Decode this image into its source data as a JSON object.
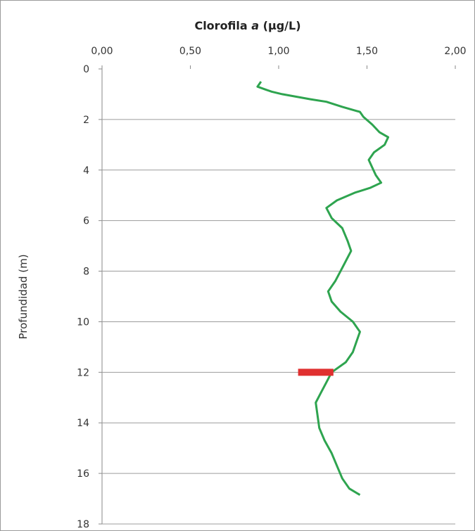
{
  "chart_data": {
    "type": "line",
    "title_main": "Clorofila ",
    "title_italic": "a",
    "title_unit": " (µg/L)",
    "xlabel": "Clorofila a (µg/L)",
    "ylabel": "Profundidad (m)",
    "xlim": [
      0,
      2
    ],
    "ylim": [
      0,
      18
    ],
    "y_inverted": true,
    "x_axis_position": "top",
    "grid": "horizontal",
    "x_tick_labels": [
      "0,00",
      "0,50",
      "1,00",
      "1,50",
      "2,00"
    ],
    "y_tick_labels": [
      "0",
      "2",
      "4",
      "6",
      "8",
      "10",
      "12",
      "14",
      "16",
      "18"
    ],
    "colors": {
      "series": "#2ea44f",
      "marker": "#e03030",
      "grid": "#9c9c9c"
    },
    "series": [
      {
        "x": [
          0.9,
          0.88,
          0.92,
          0.96,
          1.02,
          1.1,
          1.18,
          1.27,
          1.36,
          1.46,
          1.48,
          1.53,
          1.57,
          1.62,
          1.6,
          1.54,
          1.51,
          1.53,
          1.55,
          1.58,
          1.52,
          1.43,
          1.33,
          1.27,
          1.3,
          1.36,
          1.39,
          1.41,
          1.38,
          1.35,
          1.32,
          1.28,
          1.3,
          1.35,
          1.42,
          1.46,
          1.44,
          1.42,
          1.38,
          1.3,
          1.27,
          1.24,
          1.21,
          1.22,
          1.23,
          1.26,
          1.3,
          1.33,
          1.36,
          1.4,
          1.46
        ],
        "y": [
          0.5,
          0.7,
          0.8,
          0.9,
          1.0,
          1.1,
          1.2,
          1.3,
          1.5,
          1.7,
          1.9,
          2.2,
          2.5,
          2.7,
          3.0,
          3.3,
          3.6,
          3.9,
          4.2,
          4.5,
          4.7,
          4.9,
          5.2,
          5.5,
          5.9,
          6.3,
          6.8,
          7.2,
          7.6,
          8.0,
          8.4,
          8.8,
          9.2,
          9.6,
          10.0,
          10.4,
          10.8,
          11.2,
          11.6,
          12.0,
          12.4,
          12.8,
          13.2,
          13.7,
          14.2,
          14.7,
          15.2,
          15.7,
          16.2,
          16.6,
          16.85
        ]
      }
    ],
    "marker": {
      "y": 12,
      "x_start": 1.11,
      "x_end": 1.31
    }
  }
}
